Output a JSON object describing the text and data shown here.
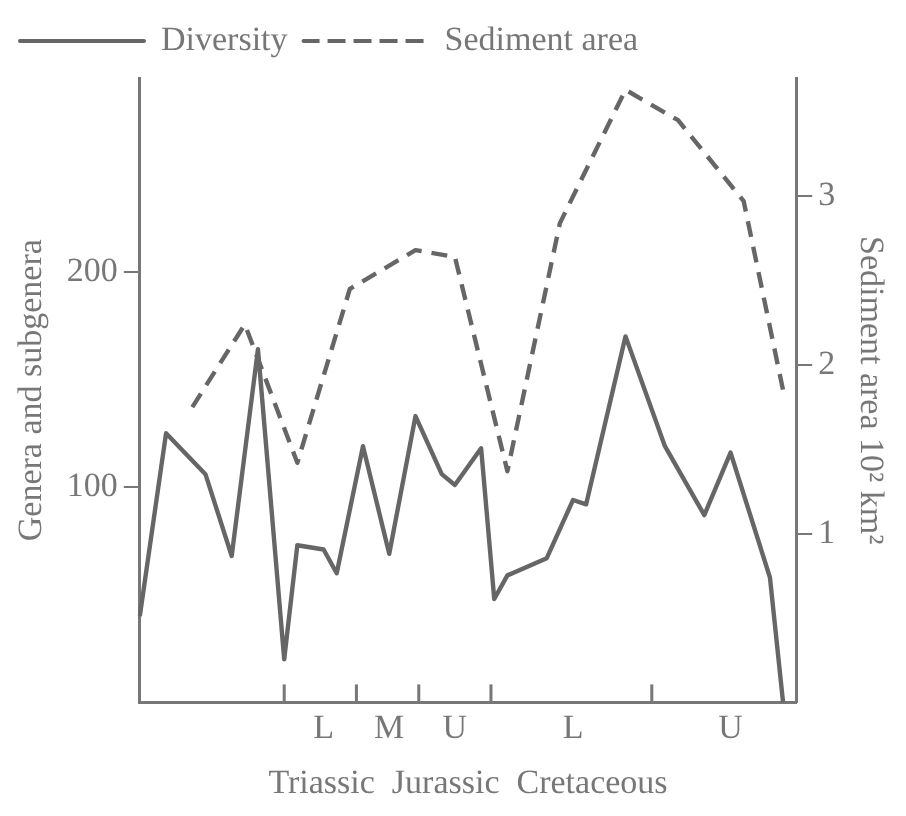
{
  "chart_data": {
    "type": "line",
    "xlabel": "Triassic  Jurassic  Cretaceous",
    "ylabel": "Genera and subgenera",
    "y2label": "Sediment area 10² km²",
    "categories": [
      null,
      null,
      null,
      null,
      null,
      null,
      null,
      null,
      null,
      null,
      null,
      null,
      null,
      null,
      "L",
      null,
      null,
      null,
      null,
      "M",
      null,
      null,
      null,
      null,
      "U",
      null,
      null,
      null,
      null,
      null,
      null,
      null,
      null,
      "L",
      null,
      null,
      null,
      null,
      null,
      null,
      null,
      null,
      null,
      null,
      null,
      "U",
      null,
      null,
      null,
      null,
      null
    ],
    "ylim": [
      0,
      290
    ],
    "yticks": [
      100,
      200
    ],
    "y2lim": [
      0,
      3.7
    ],
    "y2ticks": [
      1,
      2,
      3
    ],
    "grid": false,
    "legend": "top left",
    "marker": "none",
    "series": [
      {
        "name": "Diversity",
        "color": "#666666",
        "line_style": "solid",
        "values": [
          40,
          null,
          125,
          null,
          null,
          106,
          null,
          68,
          null,
          164,
          null,
          20,
          73,
          null,
          71,
          60,
          null,
          119,
          null,
          69,
          null,
          133,
          null,
          106,
          101,
          null,
          118,
          48,
          59,
          null,
          null,
          67,
          null,
          94,
          92,
          null,
          null,
          170,
          null,
          null,
          119,
          null,
          null,
          87,
          null,
          116,
          null,
          null,
          58,
          0,
          null
        ]
      },
      {
        "name": "Sediment area",
        "color": "#666666",
        "line_style": "dashed",
        "axis": "y2",
        "values": [
          null,
          null,
          null,
          null,
          1.75,
          null,
          null,
          null,
          2.24,
          null,
          null,
          null,
          1.42,
          null,
          null,
          null,
          2.45,
          null,
          null,
          null,
          null,
          2.68,
          null,
          null,
          2.64,
          null,
          null,
          null,
          1.37,
          null,
          null,
          null,
          2.84,
          null,
          null,
          null,
          null,
          3.63,
          null,
          null,
          null,
          3.45,
          null,
          null,
          null,
          null,
          2.97,
          null,
          null,
          1.85,
          null
        ]
      }
    ]
  }
}
